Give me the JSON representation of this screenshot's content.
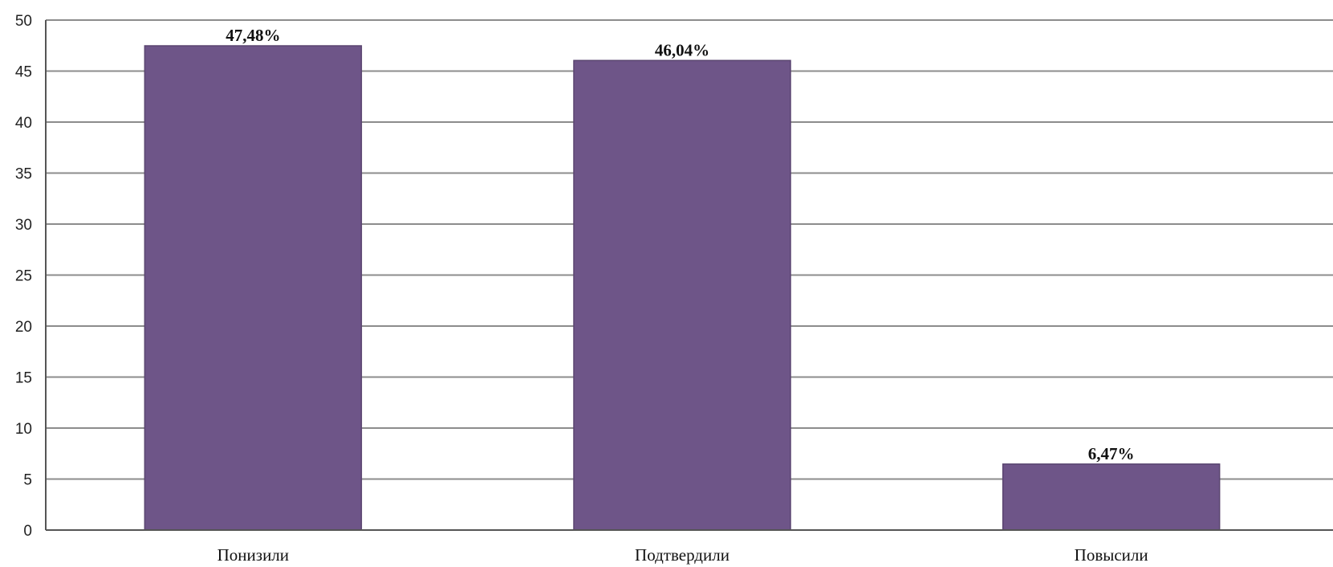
{
  "chart_data": {
    "type": "bar",
    "categories": [
      "Понизили",
      "Подтвердили",
      "Повысили"
    ],
    "values": [
      47.48,
      46.04,
      6.47
    ],
    "data_labels": [
      "47,48%",
      "46,04%",
      "6,47%"
    ],
    "title": "",
    "xlabel": "",
    "ylabel": "",
    "ylim": [
      0,
      50
    ],
    "yticks": [
      0,
      5,
      10,
      15,
      20,
      25,
      30,
      35,
      40,
      45,
      50
    ],
    "grid": true,
    "legend": "none",
    "colors": {
      "bar": "#6e5588",
      "bar_edge": "#5a4570",
      "grid": "#8c8c8c"
    }
  }
}
